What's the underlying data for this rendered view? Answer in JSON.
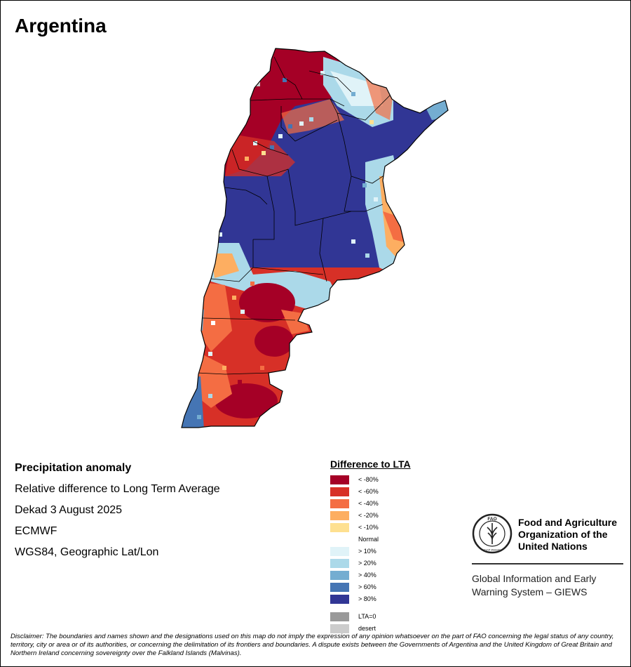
{
  "map": {
    "title": "Argentina"
  },
  "info": {
    "heading": "Precipitation anomaly",
    "subtitle": "Relative difference to Long Term Average",
    "period": "Dekad 3 August 2025",
    "source": "ECMWF",
    "projection": "WGS84, Geographic Lat/Lon"
  },
  "legend": {
    "title": "Difference to LTA",
    "items": [
      {
        "label": "< -80%",
        "color": "#a50026"
      },
      {
        "label": "< -60%",
        "color": "#d73027"
      },
      {
        "label": "< -40%",
        "color": "#f46d43"
      },
      {
        "label": "< -20%",
        "color": "#fdae61"
      },
      {
        "label": "< -10%",
        "color": "#fee090"
      },
      {
        "label": "Normal",
        "color": "#ffffff"
      },
      {
        "label": "> 10%",
        "color": "#e0f3f8"
      },
      {
        "label": "> 20%",
        "color": "#abd9e9"
      },
      {
        "label": "> 40%",
        "color": "#74add1"
      },
      {
        "label": "> 60%",
        "color": "#4575b4"
      },
      {
        "label": "> 80%",
        "color": "#313695"
      }
    ],
    "extra": [
      {
        "label": "LTA=0",
        "color": "#999999"
      },
      {
        "label": "desert",
        "color": "#cccccc"
      }
    ]
  },
  "organization": {
    "logo_text": "FAO",
    "logo_ring_text": "FIAT PANIS",
    "name_line1": "Food and Agriculture",
    "name_line2": "Organization of the",
    "name_line3": "United Nations",
    "system_line1": "Global Information and Early",
    "system_line2": "Warning System – GIEWS"
  },
  "disclaimer": "Disclaimer: The boundaries and names shown and the designations used on this map do not imply the expression of any opinion whatsoever on the part of FAO concerning the legal status of any country, territory, city or area or of its authorities, or concerning the delimitation of its frontiers and boundaries. A dispute exists between the Governments of Argentina and the United Kingdom of Great Britain and Northern Ireland concerning sovereignty over the Falkland Islands (Malvinas)."
}
